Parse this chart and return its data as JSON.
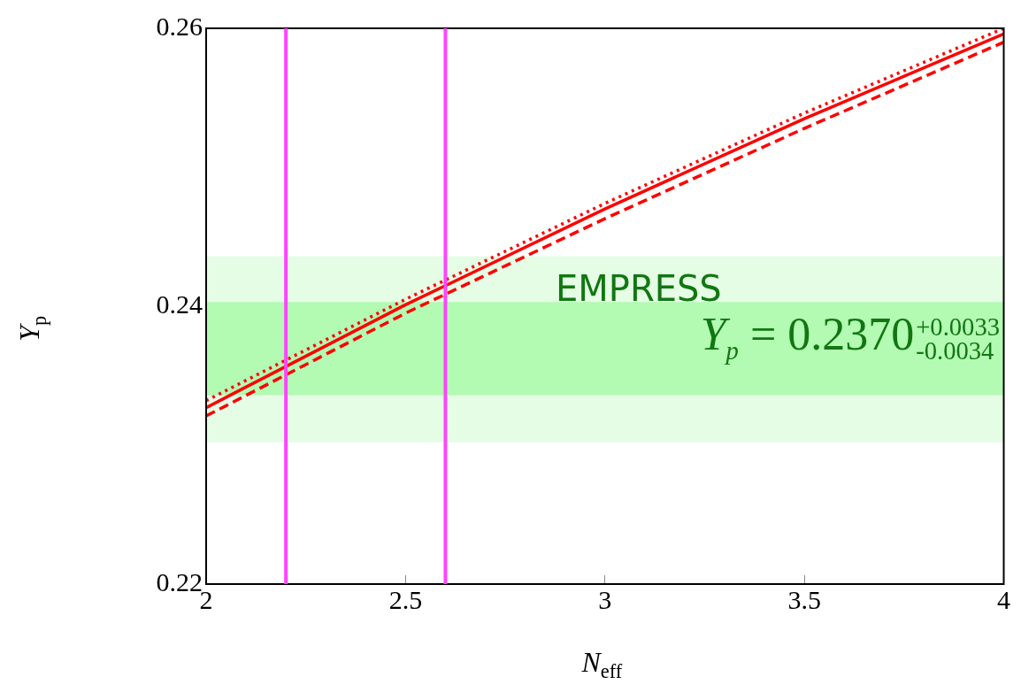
{
  "chart_data": {
    "type": "line",
    "xlabel": "N$_{eff}$",
    "ylabel": "Y$_{p}$",
    "x": [
      2,
      2.5,
      3,
      3.5,
      4
    ],
    "series": [
      {
        "color": "#ff0000",
        "line_style": "solid",
        "values": [
          0.2327,
          0.2401,
          0.247,
          0.2535,
          0.2596
        ]
      },
      {
        "color": "#ff0000",
        "line_style": "dotted",
        "values": [
          0.2332,
          0.2405,
          0.2474,
          0.2539,
          0.26
        ]
      },
      {
        "color": "#ff0000",
        "line_style": "dashed",
        "values": [
          0.2321,
          0.2395,
          0.2463,
          0.2528,
          0.259
        ]
      }
    ],
    "xlim": [
      2,
      4
    ],
    "xticks": [
      2,
      2.5,
      3,
      3.5,
      4
    ],
    "ylim": [
      0.22,
      0.26
    ],
    "yticks": [
      0.22,
      0.24,
      0.26
    ],
    "bands": [
      {
        "axis": "y",
        "from": 0.2302,
        "to": 0.2436,
        "color": "#e5fce5"
      },
      {
        "axis": "y",
        "from": 0.2336,
        "to": 0.2403,
        "color": "#b3fab3"
      }
    ],
    "ref_lines": [
      {
        "axis": "x",
        "value": 2.2,
        "color": "#ff44ff"
      },
      {
        "axis": "x",
        "value": 2.6,
        "color": "#ff44ff"
      }
    ],
    "annotations": [
      "EMPRESS",
      "Y$_{p}$ = 0.2370$^{+0.0033}$$_{-0.0034}$"
    ],
    "grid": false,
    "legend": false
  }
}
